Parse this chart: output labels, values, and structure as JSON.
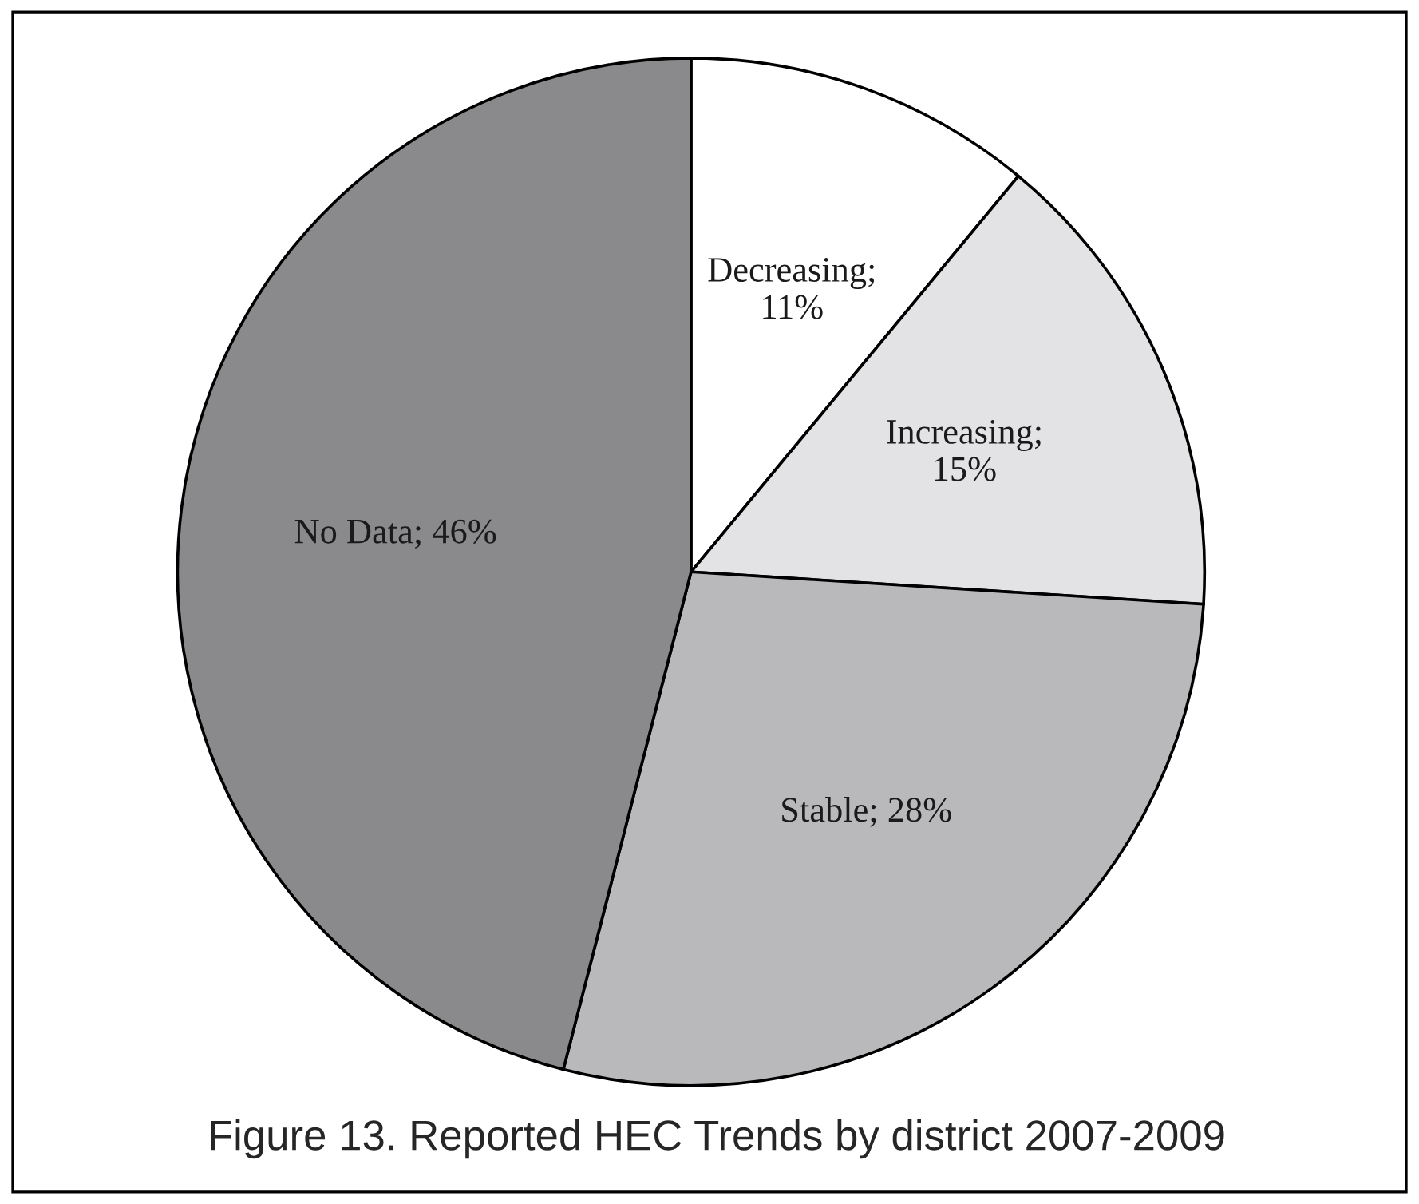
{
  "chart_data": {
    "type": "pie",
    "title": "Figure 13. Reported HEC Trends by district 2007-2009",
    "categories": [
      "Decreasing",
      "Increasing",
      "Stable",
      "No Data"
    ],
    "values": [
      11,
      15,
      28,
      46
    ],
    "colors": [
      "#ffffff",
      "#e3e3e5",
      "#b9b9bb",
      "#8a8a8d"
    ],
    "value_labels": [
      ";\n11%",
      ";\n15%",
      "; 28%",
      "; 46%"
    ]
  }
}
